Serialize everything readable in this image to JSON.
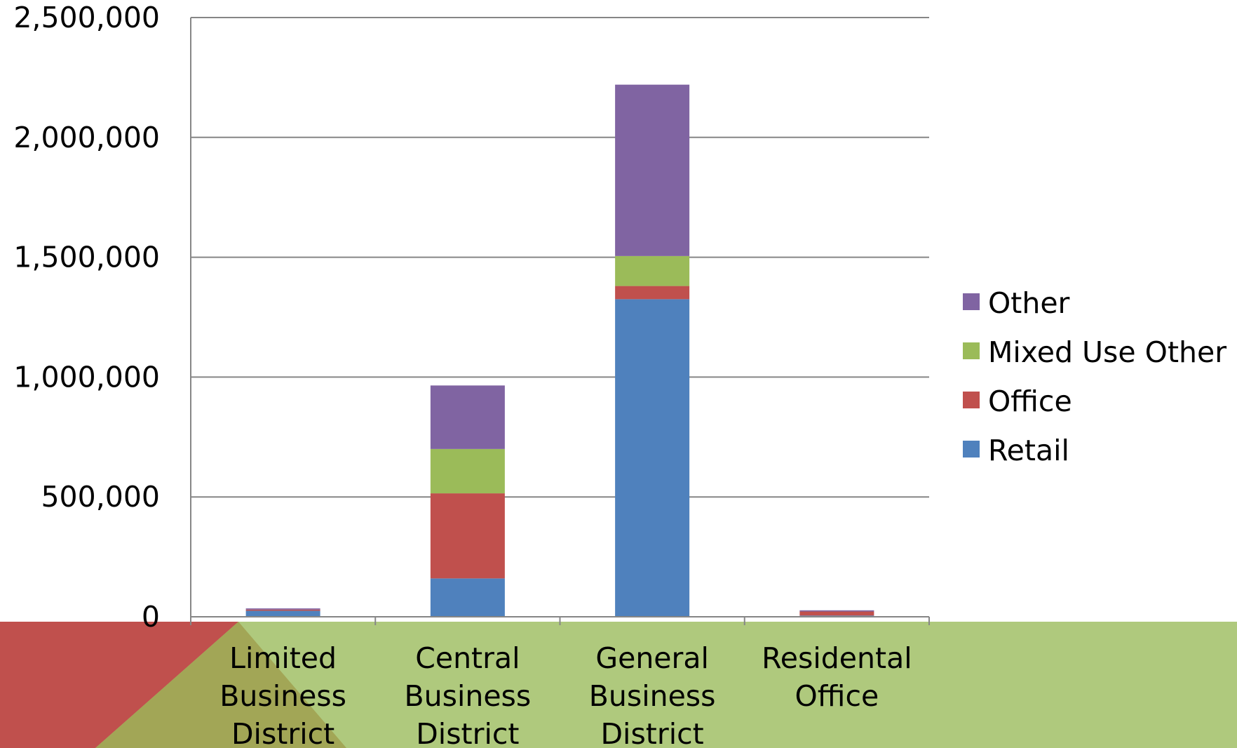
{
  "chart_data": {
    "type": "bar",
    "stacked": true,
    "title": "",
    "xlabel": "",
    "ylabel": "",
    "ylim": [
      0,
      2500000
    ],
    "yticks": [
      0,
      500000,
      1000000,
      1500000,
      2000000,
      2500000
    ],
    "ytick_labels": [
      "0",
      "500,000",
      "1,000,000",
      "1,500,000",
      "2,000,000",
      "2,500,000"
    ],
    "grid": true,
    "legend_position": "right",
    "categories": [
      [
        "Limited",
        "Business",
        "District"
      ],
      [
        "Central",
        "Business",
        "District"
      ],
      [
        "General",
        "Business",
        "District"
      ],
      [
        "Residental",
        "Office"
      ]
    ],
    "series": [
      {
        "name": "Retail",
        "color": "#4F81BD",
        "values": [
          25000,
          160000,
          1325000,
          5000
        ]
      },
      {
        "name": "Office",
        "color": "#C0504D",
        "values": [
          5000,
          355000,
          55000,
          17000
        ]
      },
      {
        "name": "Mixed Use Other",
        "color": "#9BBB59",
        "values": [
          0,
          185000,
          125000,
          0
        ]
      },
      {
        "name": "Other",
        "color": "#8064A2",
        "values": [
          5000,
          265000,
          715000,
          5000
        ]
      }
    ],
    "legend_order": [
      "Other",
      "Mixed Use Other",
      "Office",
      "Retail"
    ]
  },
  "decor": {
    "band_color": "#AFC97D",
    "accent_color": "#C0504D",
    "overlap_color": "#A2A656"
  }
}
